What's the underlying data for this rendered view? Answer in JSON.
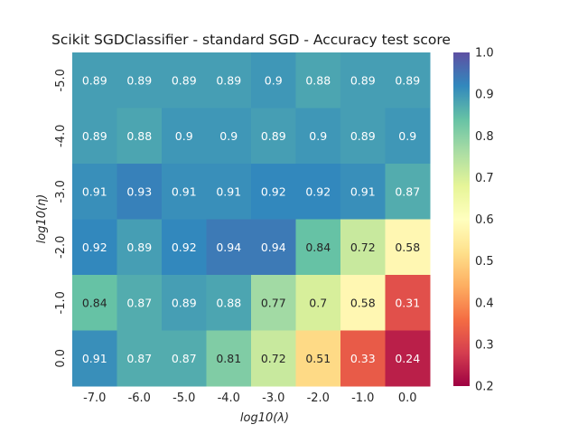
{
  "chart_data": {
    "type": "heatmap",
    "title": "Scikit SGDClassifier - standard SGD - Accuracy test score",
    "xlabel": "log10(λ)",
    "ylabel": "log10(η)",
    "x_categories": [
      "-7.0",
      "-6.0",
      "-5.0",
      "-4.0",
      "-3.0",
      "-2.0",
      "-1.0",
      "0.0"
    ],
    "y_categories": [
      "-5.0",
      "-4.0",
      "-3.0",
      "-2.0",
      "-1.0",
      "0.0"
    ],
    "values": [
      [
        0.89,
        0.89,
        0.89,
        0.89,
        0.9,
        0.88,
        0.89,
        0.89
      ],
      [
        0.89,
        0.88,
        0.9,
        0.9,
        0.89,
        0.9,
        0.89,
        0.9
      ],
      [
        0.91,
        0.93,
        0.91,
        0.91,
        0.92,
        0.92,
        0.91,
        0.87
      ],
      [
        0.92,
        0.89,
        0.92,
        0.94,
        0.94,
        0.84,
        0.72,
        0.58
      ],
      [
        0.84,
        0.87,
        0.89,
        0.88,
        0.77,
        0.7,
        0.58,
        0.31
      ],
      [
        0.91,
        0.87,
        0.87,
        0.81,
        0.72,
        0.51,
        0.33,
        0.24
      ]
    ],
    "colorbar": {
      "colormap": "Spectral",
      "range": [
        0.2,
        1.0
      ],
      "ticks": [
        "0.2",
        "0.3",
        "0.4",
        "0.5",
        "0.6",
        "0.7",
        "0.8",
        "0.9",
        "1.0"
      ]
    },
    "annotated": true
  }
}
